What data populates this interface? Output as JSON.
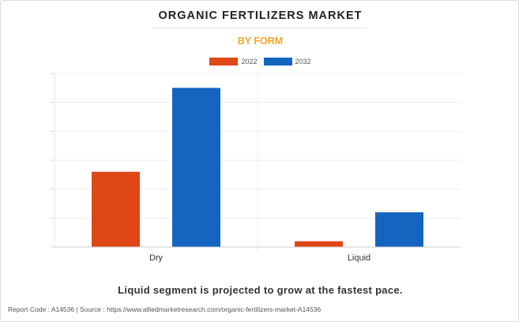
{
  "header": {
    "title": "ORGANIC FERTILIZERS MARKET",
    "subtitle": "BY FORM"
  },
  "legend": [
    {
      "label": "2022",
      "color": "#e04717"
    },
    {
      "label": "2032",
      "color": "#1565c0"
    }
  ],
  "chart_data": {
    "type": "bar",
    "title": "ORGANIC FERTILIZERS MARKET",
    "subtitle": "BY FORM",
    "categories": [
      "Dry",
      "Liquid"
    ],
    "series": [
      {
        "name": "2022",
        "color": "#e04717",
        "values": [
          2.6,
          0.2
        ]
      },
      {
        "name": "2032",
        "color": "#1565c0",
        "values": [
          5.5,
          1.2
        ]
      }
    ],
    "ylim": [
      0,
      6
    ],
    "y_tick_labels_shown": false,
    "grid": true,
    "legend_position": "top-center",
    "xlabel": "",
    "ylabel": ""
  },
  "footer": {
    "note": "Liquid segment is projected to grow at the fastest pace.",
    "source": "Report Code : A14536  |  Source : https://www.alliedmarketresearch.com/organic-fertilizers-market-A14536"
  }
}
